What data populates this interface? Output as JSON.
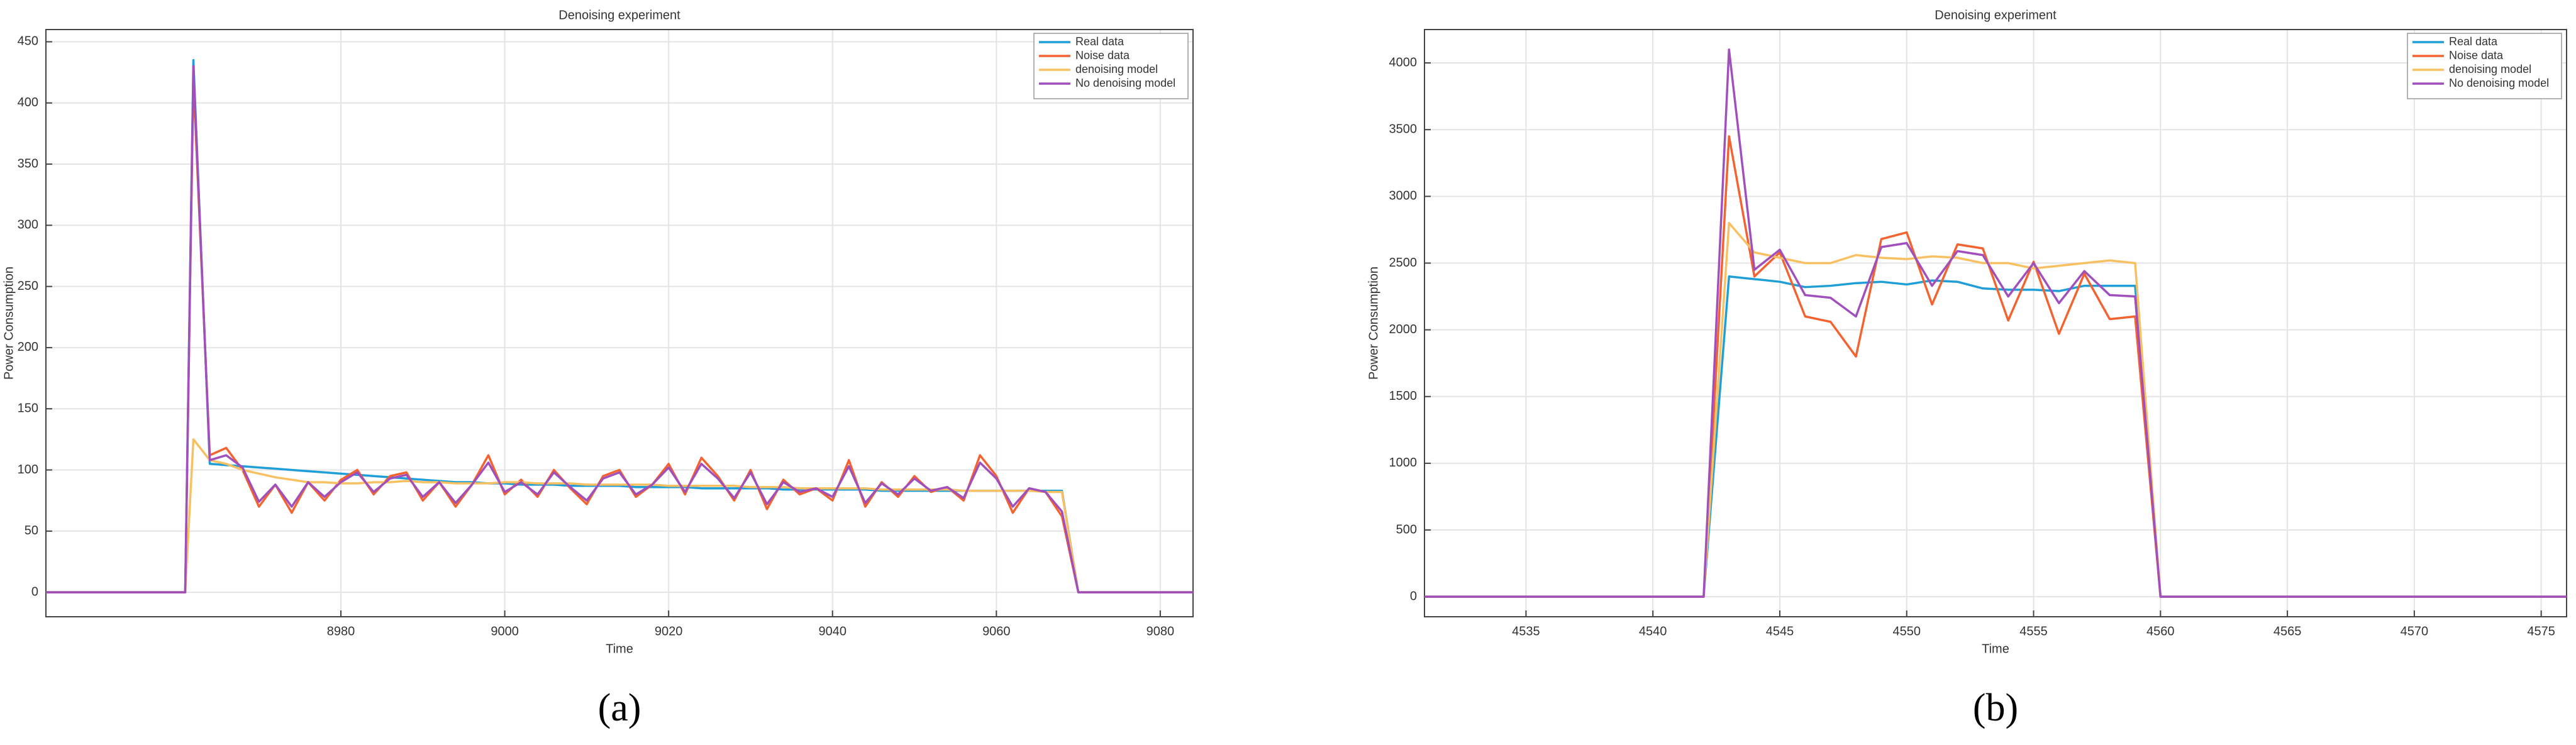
{
  "chart_data": [
    {
      "type": "line",
      "title": "Denoising experiment",
      "x_label": "Time",
      "y_label": "Power Consumption",
      "caption": "(a)",
      "x": [
        8944,
        8961,
        8962,
        8964,
        8966,
        8968,
        8970,
        8972,
        8974,
        8976,
        8978,
        8980,
        8982,
        8984,
        8986,
        8988,
        8990,
        8992,
        8994,
        8996,
        8998,
        9000,
        9002,
        9004,
        9006,
        9008,
        9010,
        9012,
        9014,
        9016,
        9018,
        9020,
        9022,
        9024,
        9026,
        9028,
        9030,
        9032,
        9034,
        9036,
        9038,
        9040,
        9042,
        9044,
        9046,
        9048,
        9050,
        9052,
        9054,
        9056,
        9058,
        9060,
        9062,
        9064,
        9066,
        9068,
        9070,
        9084
      ],
      "series": [
        {
          "name": "Real data",
          "color": "#1f9fd8",
          "values": [
            0,
            0,
            435,
            105,
            104,
            103,
            102,
            101,
            100,
            99,
            98,
            97,
            96,
            95,
            94,
            93,
            92,
            91,
            90,
            90,
            89,
            89,
            88,
            88,
            88,
            87,
            87,
            87,
            87,
            86,
            86,
            86,
            86,
            85,
            85,
            85,
            85,
            85,
            84,
            84,
            84,
            84,
            84,
            84,
            83,
            83,
            83,
            83,
            83,
            83,
            83,
            83,
            83,
            83,
            83,
            83,
            0,
            0
          ]
        },
        {
          "name": "Noise data",
          "color": "#f4632f",
          "values": [
            0,
            0,
            420,
            112,
            118,
            100,
            70,
            88,
            65,
            90,
            75,
            92,
            100,
            80,
            95,
            98,
            75,
            90,
            70,
            88,
            112,
            80,
            92,
            78,
            100,
            85,
            72,
            95,
            100,
            78,
            88,
            105,
            80,
            110,
            95,
            75,
            100,
            68,
            92,
            80,
            85,
            75,
            108,
            70,
            90,
            78,
            95,
            82,
            86,
            75,
            112,
            95,
            65,
            85,
            82,
            62,
            0,
            0
          ]
        },
        {
          "name": "denoising model",
          "color": "#f8c060",
          "values": [
            0,
            0,
            125,
            108,
            105,
            100,
            97,
            94,
            92,
            90,
            90,
            89,
            89,
            90,
            90,
            91,
            90,
            90,
            89,
            89,
            89,
            90,
            90,
            89,
            89,
            89,
            88,
            88,
            88,
            88,
            88,
            87,
            87,
            87,
            87,
            87,
            86,
            86,
            86,
            85,
            85,
            85,
            85,
            85,
            84,
            84,
            84,
            84,
            84,
            83,
            83,
            83,
            83,
            83,
            82,
            82,
            0,
            0
          ]
        },
        {
          "name": "No denoising model",
          "color": "#a04fbd",
          "values": [
            0,
            0,
            430,
            108,
            112,
            102,
            74,
            88,
            70,
            90,
            78,
            90,
            98,
            82,
            93,
            96,
            78,
            90,
            73,
            88,
            106,
            82,
            90,
            80,
            98,
            86,
            75,
            93,
            98,
            80,
            88,
            102,
            82,
            105,
            93,
            77,
            98,
            72,
            90,
            82,
            85,
            78,
            103,
            73,
            89,
            80,
            93,
            83,
            86,
            77,
            106,
            93,
            70,
            85,
            82,
            66,
            0,
            0
          ]
        }
      ],
      "xlim": [
        8944,
        9084
      ],
      "xticks": [
        8980,
        9000,
        9020,
        9040,
        9060,
        9080
      ],
      "ylim": [
        -20,
        460
      ],
      "yticks": [
        0,
        50,
        100,
        150,
        200,
        250,
        300,
        350,
        400,
        450
      ],
      "grid": true,
      "legend": "upper right"
    },
    {
      "type": "line",
      "title": "Denoising experiment",
      "x_label": "Time",
      "y_label": "Power Consumption",
      "caption": "(b)",
      "x": [
        4531,
        4542,
        4543,
        4544,
        4545,
        4546,
        4547,
        4548,
        4549,
        4550,
        4551,
        4552,
        4553,
        4554,
        4555,
        4556,
        4557,
        4558,
        4559,
        4560,
        4576
      ],
      "series": [
        {
          "name": "Real data",
          "color": "#1f9fd8",
          "values": [
            0,
            0,
            2400,
            2380,
            2360,
            2320,
            2330,
            2350,
            2360,
            2340,
            2370,
            2360,
            2310,
            2300,
            2300,
            2290,
            2330,
            2330,
            2330,
            0,
            0
          ]
        },
        {
          "name": "Noise data",
          "color": "#f4632f",
          "values": [
            0,
            0,
            3450,
            2400,
            2580,
            2100,
            2060,
            1800,
            2680,
            2730,
            2190,
            2640,
            2610,
            2070,
            2510,
            1970,
            2420,
            2080,
            2100,
            0,
            0
          ]
        },
        {
          "name": "denoising model",
          "color": "#f8c060",
          "values": [
            0,
            0,
            2800,
            2580,
            2540,
            2500,
            2500,
            2560,
            2540,
            2530,
            2550,
            2540,
            2500,
            2500,
            2460,
            2480,
            2500,
            2520,
            2500,
            0,
            0
          ]
        },
        {
          "name": "No denoising model",
          "color": "#a04fbd",
          "values": [
            0,
            0,
            4100,
            2450,
            2600,
            2260,
            2240,
            2100,
            2620,
            2650,
            2330,
            2590,
            2560,
            2250,
            2500,
            2200,
            2440,
            2260,
            2250,
            0,
            0
          ]
        }
      ],
      "xlim": [
        4531,
        4576
      ],
      "xticks": [
        4535,
        4540,
        4545,
        4550,
        4555,
        4560,
        4565,
        4570,
        4575
      ],
      "ylim": [
        -150,
        4250
      ],
      "yticks": [
        0,
        500,
        1000,
        1500,
        2000,
        2500,
        3000,
        3500,
        4000
      ],
      "grid": true,
      "legend": "upper right"
    }
  ]
}
